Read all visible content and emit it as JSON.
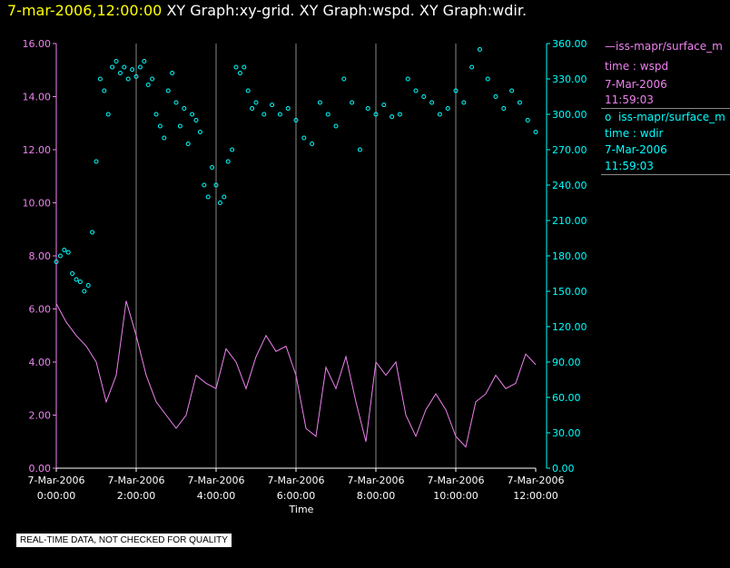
{
  "header": {
    "timestamp": "7-mar-2006,12:00:00",
    "graphs": "XY Graph:xy-grid.  XY Graph:wspd.  XY Graph:wdir."
  },
  "legend": [
    {
      "marker": "—",
      "name": "iss-mapr/surface_m",
      "desc": "time : wspd",
      "date": "7-Mar-2006",
      "time": "11:59:03",
      "color": "#ee82ee"
    },
    {
      "marker": "o",
      "name": "iss-mapr/surface_m",
      "desc": "time : wdir",
      "date": "7-Mar-2006",
      "time": "11:59:03",
      "color": "#00ffff"
    }
  ],
  "quality_note": "REAL-TIME DATA, NOT CHECKED FOR QUALITY",
  "chart_data": {
    "type": "line",
    "xlabel": "Time",
    "xlim": [
      0,
      12
    ],
    "x_ticks": [
      {
        "value": 0,
        "date": "7-Mar-2006",
        "time": "0:00:00"
      },
      {
        "value": 2,
        "date": "7-Mar-2006",
        "time": "2:00:00"
      },
      {
        "value": 4,
        "date": "7-Mar-2006",
        "time": "4:00:00"
      },
      {
        "value": 6,
        "date": "7-Mar-2006",
        "time": "6:00:00"
      },
      {
        "value": 8,
        "date": "7-Mar-2006",
        "time": "8:00:00"
      },
      {
        "value": 10,
        "date": "7-Mar-2006",
        "time": "10:00:00"
      },
      {
        "value": 12,
        "date": "7-Mar-2006",
        "time": "12:00:00"
      }
    ],
    "left_axis": {
      "ylim": [
        0,
        16
      ],
      "ticks": [
        "0.00",
        "2.00",
        "4.00",
        "6.00",
        "8.00",
        "10.00",
        "12.00",
        "14.00",
        "16.00"
      ],
      "color": "#ee82ee"
    },
    "right_axis": {
      "ylim": [
        0,
        360
      ],
      "ticks": [
        "0.00",
        "30.00",
        "60.00",
        "90.00",
        "120.00",
        "150.00",
        "180.00",
        "210.00",
        "240.00",
        "270.00",
        "300.00",
        "330.00",
        "360.00"
      ],
      "color": "#00ffff"
    },
    "grid": "vertical",
    "series": [
      {
        "name": "wspd",
        "style": "line",
        "axis": "left",
        "x": [
          0,
          0.25,
          0.5,
          0.75,
          1,
          1.25,
          1.5,
          1.75,
          2,
          2.25,
          2.5,
          2.75,
          3,
          3.25,
          3.5,
          3.75,
          4,
          4.25,
          4.5,
          4.75,
          5,
          5.25,
          5.5,
          5.75,
          6,
          6.25,
          6.5,
          6.75,
          7,
          7.25,
          7.5,
          7.75,
          8,
          8.25,
          8.5,
          8.75,
          9,
          9.25,
          9.5,
          9.75,
          10,
          10.25,
          10.5,
          10.75,
          11,
          11.25,
          11.5,
          11.75,
          12
        ],
        "values": [
          6.2,
          5.5,
          5.0,
          4.6,
          4.0,
          2.5,
          3.5,
          6.3,
          5.0,
          3.5,
          2.5,
          2.0,
          1.5,
          2.0,
          3.5,
          3.2,
          3.0,
          4.5,
          4.0,
          3.0,
          4.2,
          5.0,
          4.4,
          4.6,
          3.5,
          1.5,
          1.2,
          3.8,
          3.0,
          4.2,
          2.5,
          1.0,
          4.0,
          3.5,
          4.0,
          2.0,
          1.2,
          2.2,
          2.8,
          2.2,
          1.2,
          0.8,
          2.5,
          2.8,
          3.5,
          3.0,
          3.2,
          4.3,
          3.9
        ]
      },
      {
        "name": "wdir",
        "style": "scatter",
        "axis": "right",
        "x": [
          0,
          0.1,
          0.2,
          0.3,
          0.4,
          0.5,
          0.6,
          0.7,
          0.8,
          0.9,
          1.0,
          1.1,
          1.2,
          1.3,
          1.4,
          1.5,
          1.6,
          1.7,
          1.8,
          1.9,
          2.0,
          2.1,
          2.2,
          2.3,
          2.4,
          2.5,
          2.6,
          2.7,
          2.8,
          2.9,
          3.0,
          3.1,
          3.2,
          3.3,
          3.4,
          3.5,
          3.6,
          3.7,
          3.8,
          3.9,
          4.0,
          4.1,
          4.2,
          4.3,
          4.4,
          4.5,
          4.6,
          4.7,
          4.8,
          4.9,
          5.0,
          5.2,
          5.4,
          5.6,
          5.8,
          6.0,
          6.2,
          6.4,
          6.6,
          6.8,
          7.0,
          7.2,
          7.4,
          7.6,
          7.8,
          8.0,
          8.2,
          8.4,
          8.6,
          8.8,
          9.0,
          9.2,
          9.4,
          9.6,
          9.8,
          10.0,
          10.2,
          10.4,
          10.6,
          10.8,
          11.0,
          11.2,
          11.4,
          11.6,
          11.8,
          12.0
        ],
        "values": [
          175,
          180,
          185,
          183,
          165,
          160,
          158,
          150,
          155,
          200,
          260,
          330,
          320,
          300,
          340,
          345,
          335,
          340,
          330,
          338,
          332,
          340,
          345,
          325,
          330,
          300,
          290,
          280,
          320,
          335,
          310,
          290,
          305,
          275,
          300,
          295,
          285,
          240,
          230,
          255,
          240,
          225,
          230,
          260,
          270,
          340,
          335,
          340,
          320,
          305,
          310,
          300,
          308,
          300,
          305,
          295,
          280,
          275,
          310,
          300,
          290,
          330,
          310,
          270,
          305,
          300,
          308,
          298,
          300,
          330,
          320,
          315,
          310,
          300,
          305,
          320,
          310,
          340,
          355,
          330,
          315,
          305,
          320,
          310,
          295,
          285
        ]
      }
    ]
  }
}
